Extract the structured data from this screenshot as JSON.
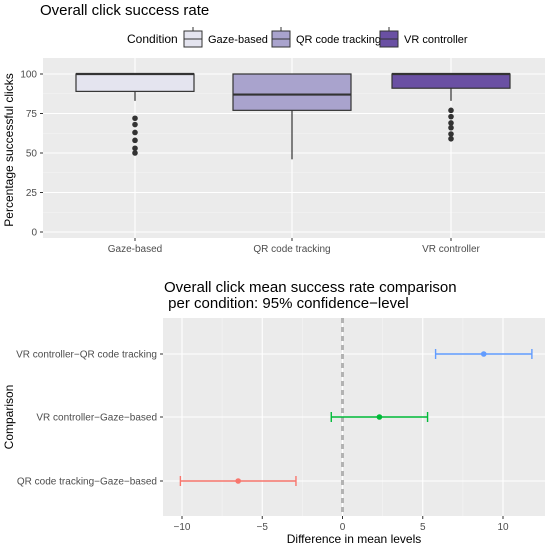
{
  "chart_data": [
    {
      "type": "boxplot",
      "title": "Overall click success rate",
      "ylabel": "Percentage successful clicks",
      "xlabel": "",
      "ylim": [
        0,
        100
      ],
      "yticks": [
        "0",
        "25",
        "50",
        "75",
        "100"
      ],
      "legend": {
        "title": "Condition",
        "placement": "top",
        "entries": [
          "Gaze-based",
          "QR code tracking",
          "VR controller"
        ]
      },
      "categories": [
        "Gaze-based",
        "QR code tracking",
        "VR controller"
      ],
      "colors": [
        "#e4e4ef",
        "#a9a3cd",
        "#6a50a3"
      ],
      "boxes": [
        {
          "name": "Gaze-based",
          "q1": 89,
          "median": 100,
          "q3": 100,
          "whisker_low": 83,
          "whisker_high": 100,
          "outliers": [
            72,
            68,
            63,
            58,
            53,
            50
          ]
        },
        {
          "name": "QR code tracking",
          "q1": 77,
          "median": 87,
          "q3": 100,
          "whisker_low": 46,
          "whisker_high": 100,
          "outliers": []
        },
        {
          "name": "VR controller",
          "q1": 91,
          "median": 100,
          "q3": 100,
          "whisker_low": 83,
          "whisker_high": 100,
          "outliers": [
            77,
            73,
            69,
            66,
            62,
            59
          ]
        }
      ],
      "grid": true
    },
    {
      "type": "errorbar",
      "title_line1": "Overall click mean success rate comparison",
      "title_line2": " per condition: 95% confidence−level",
      "xlabel": "Difference in mean levels",
      "ylabel": "Comparison",
      "xlim": [
        -11,
        12.5
      ],
      "xticks": [
        "−10",
        "−5",
        "0",
        "5",
        "10"
      ],
      "zero_line": 0,
      "comparisons": [
        {
          "name": "VR controller−QR code tracking",
          "diff": 8.8,
          "lwr": 5.8,
          "upr": 11.8,
          "color": "#619cff"
        },
        {
          "name": "VR controller−Gaze−based",
          "diff": 2.3,
          "lwr": -0.7,
          "upr": 5.3,
          "color": "#00ba38"
        },
        {
          "name": "QR code tracking−Gaze−based",
          "diff": -6.5,
          "lwr": -10.1,
          "upr": -2.9,
          "color": "#f8766d"
        }
      ],
      "grid": true
    }
  ]
}
